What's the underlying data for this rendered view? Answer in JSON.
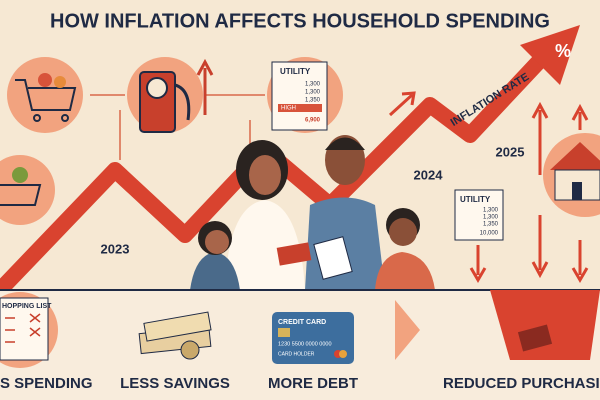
{
  "header": {
    "title": "HOW INFLATION AFFECTS HOUSEHOLD SPENDING"
  },
  "chart_illustration": {
    "trend_label": "INFLATION RATE",
    "percent_sign": "%",
    "years": [
      "2023",
      "2024",
      "2025"
    ]
  },
  "bills": [
    {
      "title": "UTILITY",
      "lines": [
        "1,300",
        "1,300",
        "1,350"
      ],
      "highlight": "HIGH",
      "total": "6,900"
    },
    {
      "title": "UTILITY",
      "lines": [
        "1,300",
        "1,300",
        "1,350"
      ],
      "total": "10,000"
    }
  ],
  "card": {
    "title": "CREDIT CARD",
    "number": "1230 5500 0000 0000",
    "holder": "CARD HOLDER"
  },
  "shopping_list": "HOPPING LIST",
  "effects": [
    "S SPENDING",
    "LESS SAVINGS",
    "MORE DEBT",
    "REDUCED PURCHASING PO"
  ]
}
